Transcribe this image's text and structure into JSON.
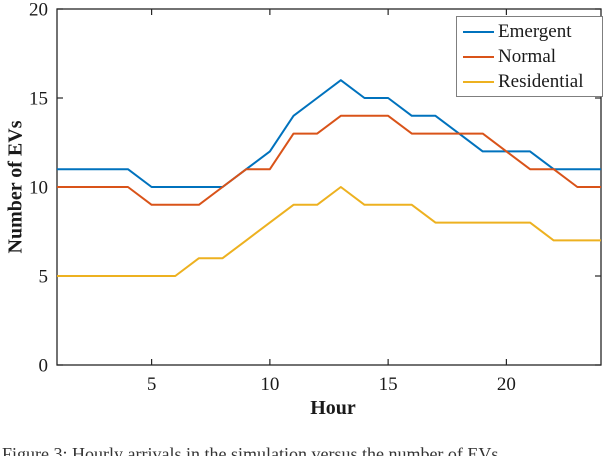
{
  "figure": {
    "caption": "Figure 3: Hourly arrivals in the simulation versus the number of EVs"
  },
  "chart_data": {
    "type": "line",
    "title": "",
    "xlabel": "Hour",
    "ylabel": "Number of EVs",
    "xlim": [
      1,
      24
    ],
    "ylim": [
      0,
      20
    ],
    "xticks": [
      5,
      10,
      15,
      20
    ],
    "yticks": [
      0,
      5,
      10,
      15,
      20
    ],
    "grid": false,
    "legend_position": "top-right",
    "axis_color": "#262626",
    "x": [
      1,
      2,
      3,
      4,
      5,
      6,
      7,
      8,
      9,
      10,
      11,
      12,
      13,
      14,
      15,
      16,
      17,
      18,
      19,
      20,
      21,
      22,
      23,
      24
    ],
    "series": [
      {
        "name": "Emergent",
        "color": "#0072BD",
        "values": [
          11,
          11,
          11,
          11,
          10,
          10,
          10,
          10,
          11,
          12,
          14,
          15,
          16,
          15,
          15,
          14,
          14,
          13,
          12,
          12,
          12,
          11,
          11,
          11
        ]
      },
      {
        "name": "Normal",
        "color": "#D95319",
        "values": [
          10,
          10,
          10,
          10,
          9,
          9,
          9,
          10,
          11,
          11,
          13,
          13,
          14,
          14,
          14,
          13,
          13,
          13,
          13,
          12,
          11,
          11,
          10,
          10
        ]
      },
      {
        "name": "Residential",
        "color": "#EDB120",
        "values": [
          5,
          5,
          5,
          5,
          5,
          5,
          6,
          6,
          7,
          8,
          9,
          9,
          10,
          9,
          9,
          9,
          8,
          8,
          8,
          8,
          8,
          7,
          7,
          7
        ]
      }
    ]
  }
}
